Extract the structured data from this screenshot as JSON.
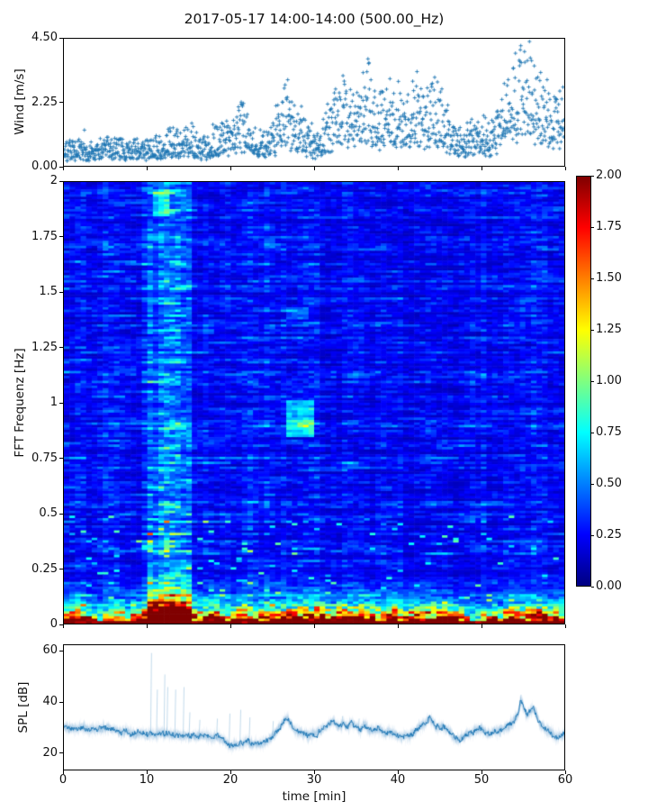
{
  "title": "2017-05-17 14:00-14:00 (500.00_Hz)",
  "figure": {
    "background": "#ffffff",
    "axis_color": "#000000",
    "series_color": "#1f77b4"
  },
  "chart_data": [
    {
      "id": "wind",
      "type": "scatter",
      "ylabel": "Wind [m/s]",
      "xlabel": "",
      "xlim": [
        0,
        60
      ],
      "ylim": [
        0,
        4.5
      ],
      "yticks": {
        "values": [
          0,
          2.25,
          4.5
        ],
        "labels": [
          "0.00",
          "2.25",
          "4.50"
        ]
      },
      "xticks": {
        "values": [
          0,
          10,
          20,
          30,
          40,
          50,
          60
        ],
        "labels": []
      },
      "marker": "plus",
      "color": "#1f77b4",
      "n_points": 1500,
      "seed": 7,
      "mean_envelope": [
        [
          0,
          0.55
        ],
        [
          2,
          0.58
        ],
        [
          4,
          0.62
        ],
        [
          6,
          0.68
        ],
        [
          7,
          0.6
        ],
        [
          8,
          0.55
        ],
        [
          9,
          0.62
        ],
        [
          10,
          0.6
        ],
        [
          11,
          0.68
        ],
        [
          12,
          0.78
        ],
        [
          13,
          0.92
        ],
        [
          13.5,
          0.85
        ],
        [
          14,
          0.8
        ],
        [
          15,
          1.0
        ],
        [
          15.5,
          0.9
        ],
        [
          16,
          0.72
        ],
        [
          17,
          0.68
        ],
        [
          18,
          0.9
        ],
        [
          19,
          1.05
        ],
        [
          20,
          0.95
        ],
        [
          21,
          1.35
        ],
        [
          21.5,
          1.5
        ],
        [
          22,
          1.25
        ],
        [
          23,
          0.9
        ],
        [
          24,
          0.78
        ],
        [
          25,
          1.05
        ],
        [
          26,
          1.7
        ],
        [
          26.5,
          2.05
        ],
        [
          27,
          1.75
        ],
        [
          27.5,
          1.45
        ],
        [
          28,
          1.25
        ],
        [
          28.5,
          1.45
        ],
        [
          29,
          1.1
        ],
        [
          30,
          0.75
        ],
        [
          30.5,
          0.85
        ],
        [
          31,
          1.1
        ],
        [
          32,
          1.6
        ],
        [
          33,
          2.2
        ],
        [
          33.3,
          2.35
        ],
        [
          34,
          1.7
        ],
        [
          35,
          1.9
        ],
        [
          36,
          2.55
        ],
        [
          36.4,
          2.6
        ],
        [
          37,
          2.0
        ],
        [
          38,
          1.75
        ],
        [
          39,
          2.05
        ],
        [
          40,
          1.85
        ],
        [
          41,
          1.65
        ],
        [
          42,
          2.05
        ],
        [
          42.5,
          2.2
        ],
        [
          43,
          1.85
        ],
        [
          44,
          1.95
        ],
        [
          45,
          2.1
        ],
        [
          45.5,
          1.9
        ],
        [
          46,
          1.35
        ],
        [
          47,
          0.95
        ],
        [
          48,
          0.85
        ],
        [
          49,
          1.15
        ],
        [
          49.5,
          1.35
        ],
        [
          50,
          1.25
        ],
        [
          51,
          0.95
        ],
        [
          52,
          1.35
        ],
        [
          53,
          1.95
        ],
        [
          54,
          2.5
        ],
        [
          55,
          2.85
        ],
        [
          55.7,
          2.95
        ],
        [
          56.5,
          2.6
        ],
        [
          57,
          2.35
        ],
        [
          57.5,
          2.2
        ],
        [
          58,
          1.95
        ],
        [
          59,
          1.75
        ],
        [
          60,
          1.85
        ]
      ]
    },
    {
      "id": "spectrogram",
      "type": "heatmap",
      "ylabel": "FFT Frequenz [Hz]",
      "xlabel": "",
      "xlim": [
        0,
        60
      ],
      "ylim": [
        0,
        2
      ],
      "clim": [
        0,
        2
      ],
      "colormap": "jet",
      "cmap_stops": [
        [
          0,
          "#000080"
        ],
        [
          0.125,
          "#0000ff"
        ],
        [
          0.375,
          "#00ffff"
        ],
        [
          0.625,
          "#ffff00"
        ],
        [
          0.875,
          "#ff0000"
        ],
        [
          1,
          "#800000"
        ]
      ],
      "yticks": {
        "values": [
          0,
          0.25,
          0.5,
          0.75,
          1,
          1.25,
          1.5,
          1.75,
          2
        ],
        "labels": [
          "0",
          "0.25",
          "0.5",
          "0.75",
          "1",
          "1.25",
          "1.5",
          "1.75",
          "2"
        ]
      },
      "xticks": {
        "values": [
          0,
          10,
          20,
          30,
          40,
          50,
          60
        ],
        "labels": []
      },
      "colorbar": {
        "tick_values": [
          0,
          0.25,
          0.5,
          0.75,
          1,
          1.25,
          1.5,
          1.75,
          2
        ],
        "tick_labels": [
          "0.00",
          "0.25",
          "0.50",
          "0.75",
          "1.00",
          "1.25",
          "1.50",
          "1.75",
          "2.00"
        ]
      },
      "grid": {
        "nx": 90,
        "ny": 180
      },
      "seed": 11,
      "features": {
        "background_level": [
          0.1,
          0.35
        ],
        "low_freq_hot_band": {
          "freq_scale": 0.05,
          "amplitude": 2.7,
          "bottom_row_value": 2.0
        },
        "bright_column_band": {
          "t": [
            10.3,
            15.5
          ],
          "gain": 1.45,
          "low_freq_extra": 0.8
        },
        "patches": [
          {
            "t": [
              26.9,
              30.3
            ],
            "f": [
              0.85,
              1.01
            ],
            "boost": 0.45
          },
          {
            "t": [
              10.8,
              12.6
            ],
            "f": [
              1.85,
              1.97
            ],
            "boost": 0.35
          },
          {
            "t": [
              26.9,
              29.6
            ],
            "f": [
              1.38,
              1.43
            ],
            "boost": 0.22
          }
        ],
        "low_mod_bumps": [
          {
            "t": [
              10.3,
              15.8
            ],
            "amp": 0.35
          },
          {
            "t": [
              25.5,
              32.0
            ],
            "amp": 0.25
          },
          {
            "t": [
              33.0,
              42.0
            ],
            "amp": 0.2
          },
          {
            "t": [
              54.0,
              60.0
            ],
            "amp": 0.25
          },
          {
            "t": [
              46.0,
              50.0
            ],
            "amp": -0.2
          },
          {
            "t": [
              3.0,
              8.0
            ],
            "amp": -0.15
          }
        ],
        "mid_mod_bumps": [
          {
            "t": [
              31.0,
              61.0
            ],
            "amp": -0.12
          },
          {
            "t": [
              52.0,
              60.0
            ],
            "amp": 0.08
          }
        ]
      }
    },
    {
      "id": "spl",
      "type": "line",
      "ylabel": "SPL [dB]",
      "xlabel": "time [min]",
      "xlim": [
        0,
        60
      ],
      "ylim": [
        13.3,
        62.6
      ],
      "yticks": {
        "values": [
          20,
          40,
          60
        ],
        "labels": [
          "20",
          "40",
          "60"
        ]
      },
      "xticks": {
        "values": [
          0,
          10,
          20,
          30,
          40,
          50,
          60
        ],
        "labels": [
          "0",
          "10",
          "20",
          "30",
          "40",
          "50",
          "60"
        ]
      },
      "color": "#1f77b4",
      "seed": 3,
      "base_points": [
        [
          0,
          30
        ],
        [
          1,
          29.5
        ],
        [
          2,
          29.8
        ],
        [
          3,
          29
        ],
        [
          4,
          29.5
        ],
        [
          5,
          30
        ],
        [
          6,
          29
        ],
        [
          7,
          28
        ],
        [
          7.5,
          28.5
        ],
        [
          8,
          27.5
        ],
        [
          8.5,
          27
        ],
        [
          9,
          28
        ],
        [
          9.5,
          27.5
        ],
        [
          10,
          27
        ],
        [
          10.5,
          27.5
        ],
        [
          11,
          27
        ],
        [
          11.5,
          27.5
        ],
        [
          12,
          27
        ],
        [
          12.5,
          27.5
        ],
        [
          13,
          26.8
        ],
        [
          13.5,
          27
        ],
        [
          14,
          26.5
        ],
        [
          14.5,
          27
        ],
        [
          15,
          26.5
        ],
        [
          15.5,
          26.8
        ],
        [
          16,
          26.2
        ],
        [
          16.5,
          26.5
        ],
        [
          17,
          26.8
        ],
        [
          17.5,
          26.3
        ],
        [
          18,
          26
        ],
        [
          18.5,
          26.5
        ],
        [
          19,
          25
        ],
        [
          19.5,
          23.8
        ],
        [
          20,
          22.8
        ],
        [
          20.5,
          23
        ],
        [
          21,
          23.5
        ],
        [
          21.5,
          23.8
        ],
        [
          22,
          24.5
        ],
        [
          22.5,
          23.8
        ],
        [
          23,
          23.5
        ],
        [
          23.5,
          23.2
        ],
        [
          24,
          24
        ],
        [
          24.5,
          25.5
        ],
        [
          25,
          26.5
        ],
        [
          25.5,
          28.5
        ],
        [
          26,
          30.5
        ],
        [
          26.5,
          33
        ],
        [
          26.8,
          33.8
        ],
        [
          27,
          32.5
        ],
        [
          27.5,
          30
        ],
        [
          28,
          28.5
        ],
        [
          28.5,
          27.8
        ],
        [
          29,
          27.2
        ],
        [
          29.5,
          26.8
        ],
        [
          30,
          27
        ],
        [
          30.5,
          28
        ],
        [
          31,
          29.5
        ],
        [
          31.5,
          30.5
        ],
        [
          32,
          32
        ],
        [
          32.3,
          32.5
        ],
        [
          32.7,
          31
        ],
        [
          33,
          30
        ],
        [
          33.5,
          31.5
        ],
        [
          34,
          30
        ],
        [
          34.5,
          32
        ],
        [
          35,
          30.5
        ],
        [
          35.5,
          29
        ],
        [
          36,
          31
        ],
        [
          36.5,
          29.5
        ],
        [
          37,
          28.5
        ],
        [
          37.5,
          29.5
        ],
        [
          38,
          29
        ],
        [
          38.5,
          28
        ],
        [
          39,
          28.5
        ],
        [
          39.5,
          27.5
        ],
        [
          40,
          26.5
        ],
        [
          40.5,
          26
        ],
        [
          41,
          27
        ],
        [
          41.5,
          26.5
        ],
        [
          42,
          28
        ],
        [
          42.5,
          30
        ],
        [
          43,
          31
        ],
        [
          43.5,
          31.8
        ],
        [
          43.8,
          33.5
        ],
        [
          44.2,
          32.5
        ],
        [
          44.5,
          31
        ],
        [
          45,
          29.5
        ],
        [
          45.5,
          30.5
        ],
        [
          46,
          29
        ],
        [
          46.5,
          27
        ],
        [
          47,
          25.5
        ],
        [
          47.5,
          25
        ],
        [
          48,
          26.5
        ],
        [
          48.5,
          27.5
        ],
        [
          49,
          28
        ],
        [
          49.5,
          29
        ],
        [
          50,
          29.5
        ],
        [
          50.5,
          28
        ],
        [
          51,
          27.5
        ],
        [
          51.5,
          28.5
        ],
        [
          52,
          28
        ],
        [
          52.5,
          29
        ],
        [
          53,
          30
        ],
        [
          53.5,
          31
        ],
        [
          54,
          32.5
        ],
        [
          54.5,
          36
        ],
        [
          54.8,
          41
        ],
        [
          55.1,
          38
        ],
        [
          55.5,
          35
        ],
        [
          56,
          36.5
        ],
        [
          56.3,
          38
        ],
        [
          56.7,
          34.5
        ],
        [
          57,
          32
        ],
        [
          57.5,
          30
        ],
        [
          58,
          29
        ],
        [
          58.5,
          27.5
        ],
        [
          59,
          26
        ],
        [
          59.5,
          26.5
        ],
        [
          60,
          28
        ]
      ],
      "spikes": [
        [
          10.4,
          59.5
        ],
        [
          11.1,
          45
        ],
        [
          12.0,
          51
        ],
        [
          12.35,
          46
        ],
        [
          13.3,
          45
        ],
        [
          14.3,
          46
        ],
        [
          15.0,
          36
        ],
        [
          16.2,
          33
        ],
        [
          18.3,
          33.5
        ],
        [
          19.8,
          35.5
        ],
        [
          21.1,
          37
        ],
        [
          22.2,
          34
        ],
        [
          25.0,
          32.5
        ],
        [
          33.3,
          34.5
        ],
        [
          35.3,
          33.5
        ],
        [
          54.7,
          43
        ]
      ]
    }
  ]
}
